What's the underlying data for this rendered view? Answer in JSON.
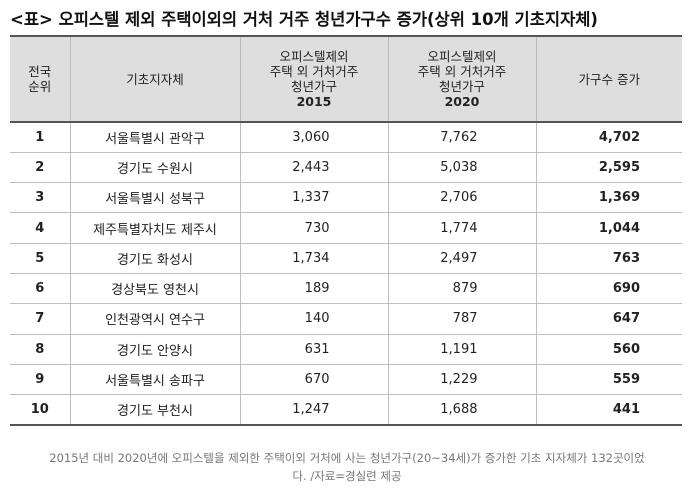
{
  "title": "<표> 오피스텔 제외 주택이외의 거처 거주 청년가구수 증가(상위 10개 기초지자체)",
  "headers": {
    "rank_line1": "전국",
    "rank_line2": "순위",
    "region": "기초지자체",
    "y2015_line1": "오피스텔제외",
    "y2015_line2": "주택 외 거처거주",
    "y2015_line3": "청년가구",
    "y2015_year": "2015",
    "y2020_line1": "오피스텔제외",
    "y2020_line2": "주택 외 거처거주",
    "y2020_line3": "청년가구",
    "y2020_year": "2020",
    "increase": "가구수 증가"
  },
  "rows": [
    {
      "rank": "1",
      "region": "서울특별시 관악구",
      "y2015": "3,060",
      "y2020": "7,762",
      "increase": "4,702"
    },
    {
      "rank": "2",
      "region": "경기도 수원시",
      "y2015": "2,443",
      "y2020": "5,038",
      "increase": "2,595"
    },
    {
      "rank": "3",
      "region": "서울특별시 성북구",
      "y2015": "1,337",
      "y2020": "2,706",
      "increase": "1,369"
    },
    {
      "rank": "4",
      "region": "제주특별자치도 제주시",
      "y2015": "730",
      "y2020": "1,774",
      "increase": "1,044"
    },
    {
      "rank": "5",
      "region": "경기도 화성시",
      "y2015": "1,734",
      "y2020": "2,497",
      "increase": "763"
    },
    {
      "rank": "6",
      "region": "경상북도 영천시",
      "y2015": "189",
      "y2020": "879",
      "increase": "690"
    },
    {
      "rank": "7",
      "region": "인천광역시 연수구",
      "y2015": "140",
      "y2020": "787",
      "increase": "647"
    },
    {
      "rank": "8",
      "region": "경기도 안양시",
      "y2015": "631",
      "y2020": "1,191",
      "increase": "560"
    },
    {
      "rank": "9",
      "region": "서울특별시 송파구",
      "y2015": "670",
      "y2020": "1,229",
      "increase": "559"
    },
    {
      "rank": "10",
      "region": "경기도 부천시",
      "y2015": "1,247",
      "y2020": "1,688",
      "increase": "441"
    }
  ],
  "caption_line1": "2015년 대비 2020년에 오피스텔을 제외한 주택이외 거처에 사는 청년가구(20~34세)가 증가한 기초 지자체가 132곳이었",
  "caption_line2": "다. /자료=경실련 제공"
}
